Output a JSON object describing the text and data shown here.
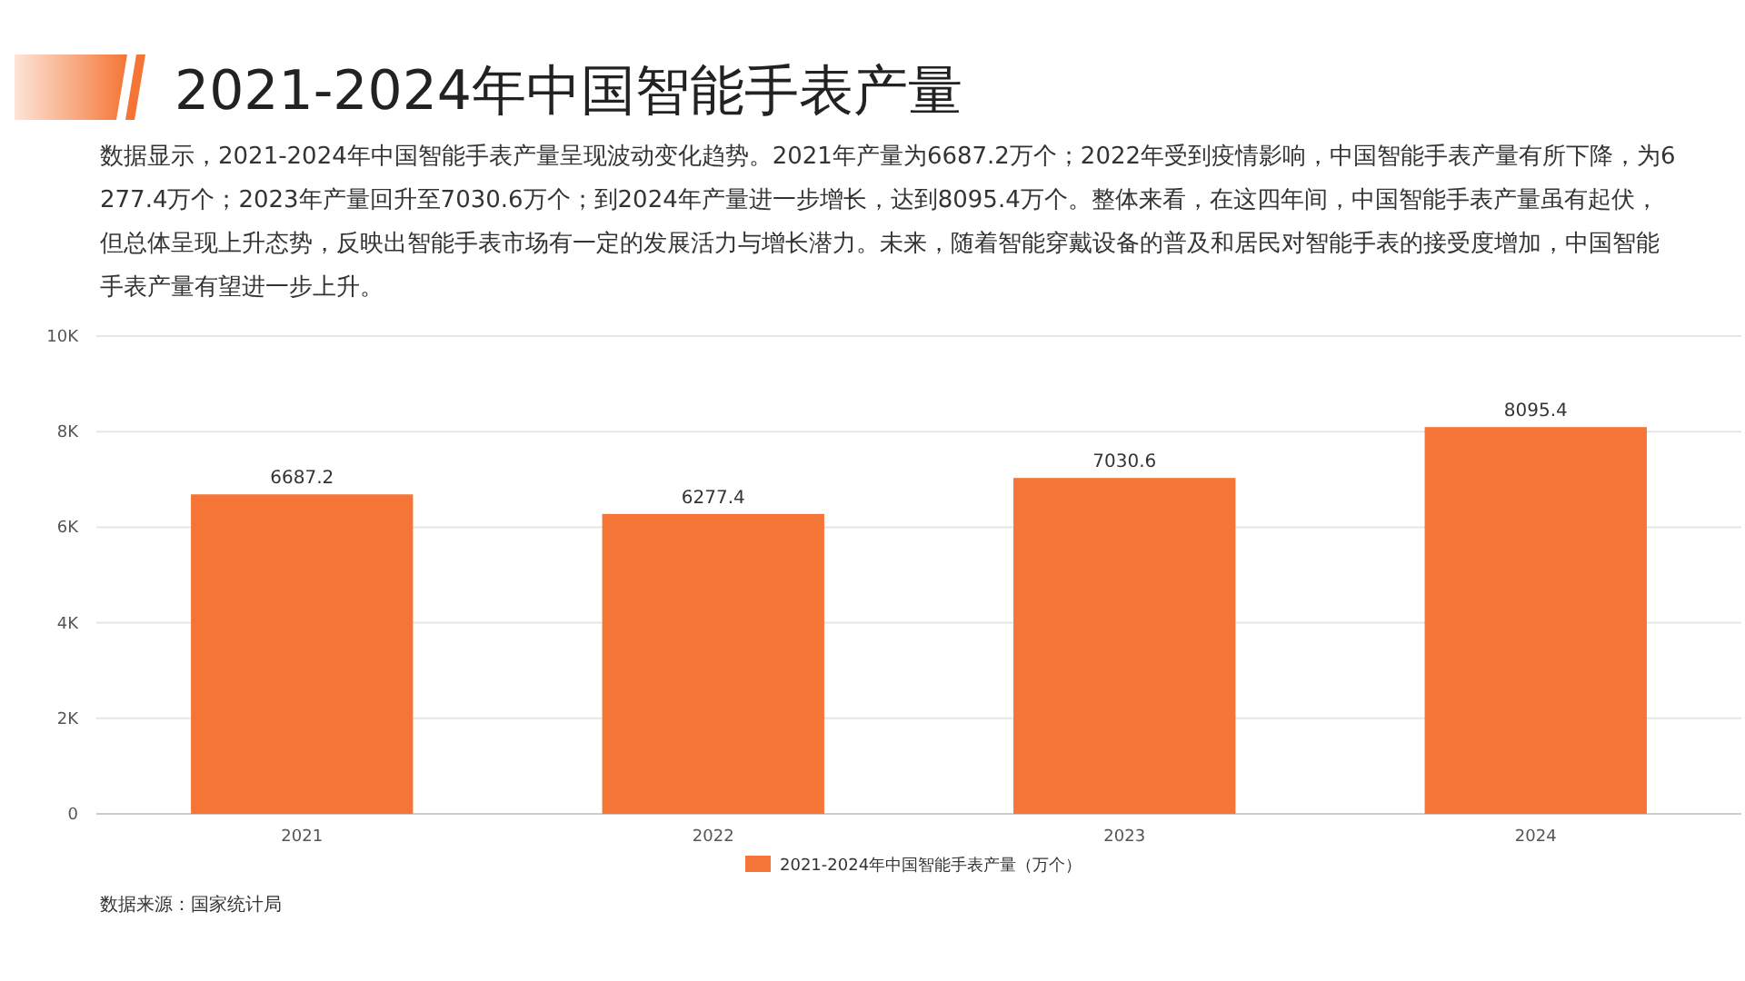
{
  "chart_data": {
    "type": "bar",
    "title": "2021-2024年中国智能手表产量",
    "subtitle": "数据显示，2021-2024年中国智能手表产量呈现波动变化趋势。2021年产量为6687.2万个；2022年受到疫情影响，中国智能手表产量有所下降，为6277.4万个；2023年产量回升至7030.6万个；到2024年产量进一步增长，达到8095.4万个。整体来看，在这四年间，中国智能手表产量虽有起伏，但总体呈现上升态势，反映出智能手表市场有一定的发展活力与增长潜力。未来，随着智能穿戴设备的普及和居民对智能手表的接受度增加，中国智能手表产量有望进一步上升。",
    "categories": [
      "2021",
      "2022",
      "2023",
      "2024"
    ],
    "series": [
      {
        "name": "2021-2024年中国智能手表产量（万个）",
        "color": "#f47536",
        "values": [
          6687.2,
          6277.4,
          7030.6,
          8095.4
        ]
      }
    ],
    "ylim": [
      0,
      10000
    ],
    "yticks": [
      0,
      {
        "value": 2000,
        "label": "2K"
      },
      {
        "value": 4000,
        "label": "4K"
      },
      {
        "value": 6000,
        "label": "6K"
      },
      {
        "value": 8000,
        "label": "8K"
      },
      {
        "value": 10000,
        "label": "10K"
      }
    ],
    "grid": "y",
    "legend": "bottom",
    "data_labels": true,
    "annotations": [
      "数据来源：国家统计局"
    ]
  }
}
